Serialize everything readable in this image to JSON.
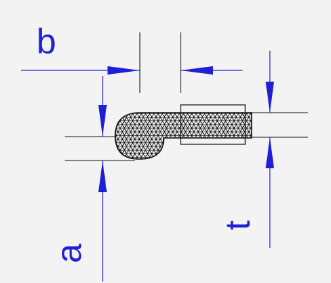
{
  "labels": {
    "b": "b",
    "a": "a",
    "t": "t"
  },
  "colors": {
    "background": "#f3f3f3",
    "dimension": "#1f1fd6",
    "profile": "#111111"
  }
}
